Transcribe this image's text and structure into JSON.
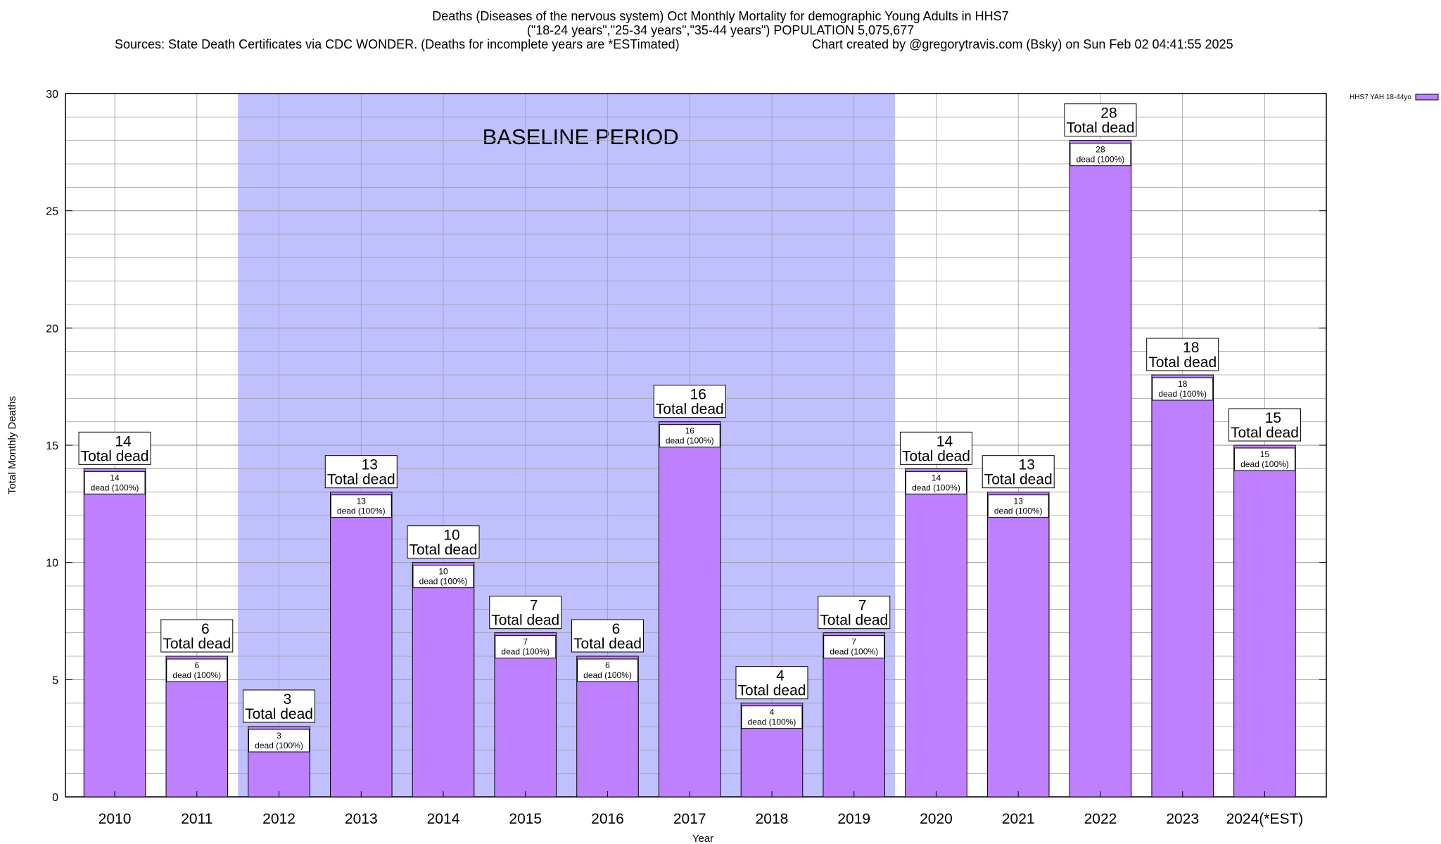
{
  "chart_data": {
    "type": "bar",
    "title_lines": [
      "Deaths (Diseases of the nervous system) Oct Monthly Mortality for demographic Young Adults in HHS7",
      "(\"18-24 years\",\"25-34 years\",\"35-44 years\") POPULATION 5,075,677",
      "Sources: State Death Certificates via CDC WONDER. (Deaths for incomplete years are *ESTimated)"
    ],
    "credit": "Chart created by @gregorytravis.com (Bsky) on Sun Feb 02 04:41:55 2025",
    "xlabel": "Year",
    "ylabel": "Total Monthly Deaths",
    "ylim": [
      0,
      30
    ],
    "yticks": [
      0,
      5,
      10,
      15,
      20,
      25,
      30
    ],
    "grid": true,
    "legend_position": "top-right",
    "categories": [
      "2010",
      "2011",
      "2012",
      "2013",
      "2014",
      "2015",
      "2016",
      "2017",
      "2018",
      "2019",
      "2020",
      "2021",
      "2022",
      "2023",
      "2024(*EST)"
    ],
    "series": [
      {
        "name": "HHS7 YAH 18-44yo",
        "values": [
          14,
          6,
          3,
          13,
          10,
          7,
          6,
          16,
          4,
          7,
          14,
          13,
          28,
          18,
          15
        ]
      }
    ],
    "top_label_suffix": "Total dead",
    "inner_label_suffix": "dead (100%)",
    "baseline": {
      "label": "BASELINE PERIOD",
      "from": "2012",
      "to": "2019"
    },
    "colors": {
      "bar": "#bf80ff",
      "baseline": "#c0c0ff",
      "grid": "#a0a0a0"
    }
  }
}
